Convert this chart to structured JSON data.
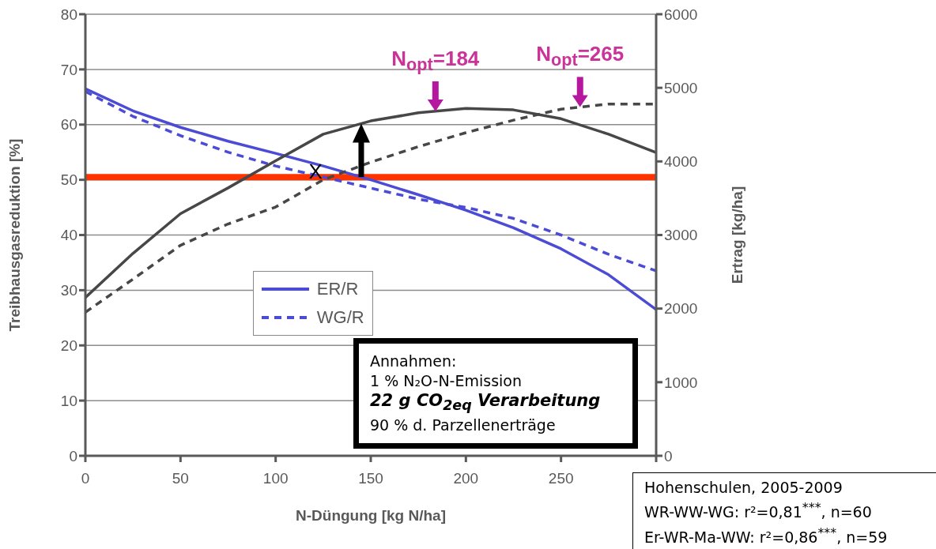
{
  "chart_data": {
    "type": "line",
    "xlabel": "N-Düngung [kg N/ha]",
    "ylabel": "Treibhausgasreduktion [%]",
    "y2label": "Ertrag [kg/ha]",
    "x": [
      0,
      25,
      50,
      75,
      100,
      125,
      150,
      175,
      200,
      225,
      250,
      275,
      300
    ],
    "xlim": [
      0,
      300
    ],
    "xticks": [
      0,
      50,
      100,
      150,
      200,
      250,
      {
        "value": 300,
        "label": null
      }
    ],
    "ylim": [
      0,
      80
    ],
    "yticks": [
      0,
      10,
      20,
      30,
      40,
      50,
      60,
      70,
      80
    ],
    "y2lim": [
      0,
      6000
    ],
    "y2ticks": [
      0,
      1000,
      2000,
      3000,
      4000,
      5000,
      6000
    ],
    "grid": "y",
    "legend": "left",
    "marker": "none",
    "series": [
      {
        "name": "ER/R",
        "color": "#4b4bd6",
        "line_style": "solid",
        "values": [
          66.5,
          62.5,
          59.5,
          57,
          54.8,
          52.5,
          50,
          47.3,
          44.5,
          41.3,
          37.5,
          32.8,
          26.5
        ]
      },
      {
        "name": "WG/R",
        "color": "#4b4bd6",
        "line_style": "dashed",
        "values": [
          66,
          61.5,
          58,
          55,
          52.5,
          50.5,
          48.5,
          46.5,
          45,
          43,
          40,
          36.5,
          33.5
        ]
      },
      {
        "color": "#474747",
        "line_style": "solid",
        "axis": "y2",
        "values": [
          2150,
          2750,
          3290,
          3640,
          4010,
          4370,
          4550,
          4660,
          4720,
          4700,
          4580,
          4370,
          4120
        ]
      },
      {
        "color": "#474747",
        "line_style": "dashed",
        "axis": "y2",
        "values": [
          1950,
          2400,
          2860,
          3150,
          3380,
          3750,
          3990,
          4200,
          4390,
          4560,
          4710,
          4780,
          4780
        ]
      }
    ],
    "ref_lines": [
      {
        "axis": "y",
        "value": 50.5,
        "color": "#ff3300"
      }
    ],
    "annotations": [
      {
        "text": "N$_{opt}$=184",
        "x": 184,
        "y": 62.4
      },
      {
        "text": "N$_{opt}$=265",
        "x": 260,
        "y": 63.2
      },
      {
        "text": "X",
        "x": 121,
        "y": 50.5
      },
      "Annahmen:\n1 % N₂O-N-Emission\n22 g CO$_{2eq}$ Verarbeitung\n90 % d. Parzellenerträge",
      "Hohenschulen, 2005-2009\nWR-WW-WG: r²=0,81$^{***}$, n=60\nEr-WR-Ma-WW: r²=0,86$^{***}$, n=59"
    ]
  }
}
